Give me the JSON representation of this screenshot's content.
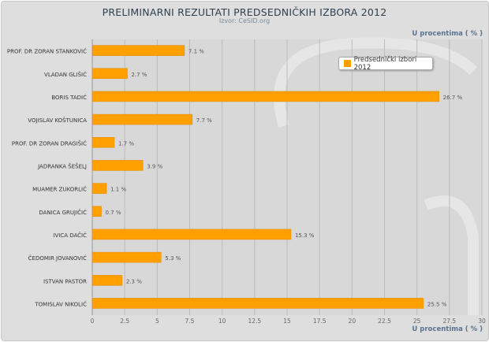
{
  "chart_data": {
    "type": "bar",
    "orientation": "horizontal",
    "title": "PRELIMINARNI REZULTATI PREDSEDNIČKIH IZBORA 2012",
    "subtitle": "Izvor: CeSID.org",
    "xlabel": "U procentima ( % )",
    "categories": [
      "PROF. DR ZORAN STANKOVIĆ",
      "VLADAN GLIŠIĆ",
      "BORIS TADIĆ",
      "VOJISLAV KOŠTUNICA",
      "PROF. DR ZORAN DRAGIŠIĆ",
      "JADRANKA ŠEŠELJ",
      "MUAMER ZUKORLIĆ",
      "DANICA GRUJIČIĆ",
      "IVICA DAČIĆ",
      "ČEDOMIR JOVANOVIĆ",
      "ISTVAN PASTOR",
      "TOMISLAV NIKOLIĆ"
    ],
    "series": [
      {
        "name": "Predsednički izbori 2012",
        "values": [
          7.1,
          2.7,
          26.7,
          7.7,
          1.7,
          3.9,
          1.1,
          0.7,
          15.3,
          5.3,
          2.3,
          25.5
        ]
      }
    ],
    "data_labels": [
      "7.1 %",
      "2.7 %",
      "26.7 %",
      "7.7 %",
      "1.7 %",
      "3.9 %",
      "1.1 %",
      "0.7 %",
      "15.3 %",
      "5.3 %",
      "2.3 %",
      "25.5 %"
    ],
    "xlim": [
      0,
      30
    ],
    "xticks": [
      "0",
      "2.5",
      "5",
      "7.5",
      "10",
      "12.5",
      "15",
      "17.5",
      "20",
      "22.5",
      "25",
      "27.5",
      "30"
    ],
    "grid": true,
    "legend": "top-right",
    "colors": {
      "bar": "#ff9f00",
      "background": "#dedede"
    }
  }
}
